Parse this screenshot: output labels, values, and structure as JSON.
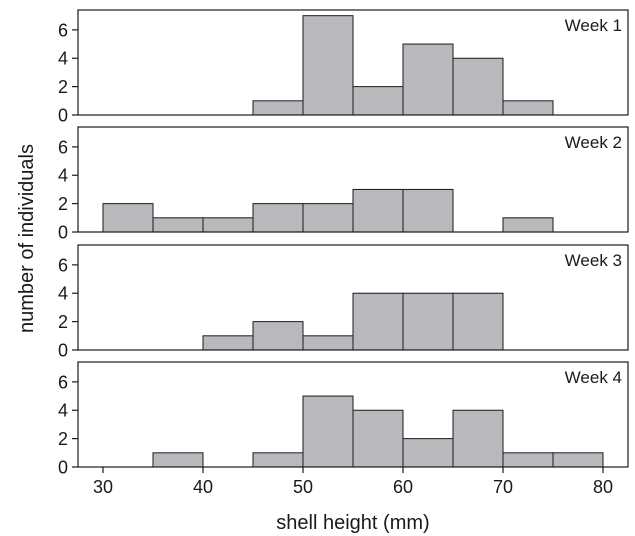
{
  "chart_data": {
    "type": "bar",
    "subtype": "histogram-small-multiples",
    "xlabel": "shell height (mm)",
    "ylabel": "number of individuals",
    "x_ticks": [
      "30",
      "40",
      "50",
      "60",
      "70",
      "80"
    ],
    "x_tick_values": [
      30,
      40,
      50,
      60,
      70,
      80
    ],
    "xlim": [
      27.5,
      82.5
    ],
    "y_ticks": [
      "0",
      "2",
      "4",
      "6"
    ],
    "y_tick_values": [
      0,
      2,
      4,
      6
    ],
    "ylim": [
      0,
      7.4
    ],
    "bin_width": 5,
    "bar_color": "#b9b9bd",
    "grid": false,
    "panels": [
      {
        "title": "Week 1",
        "bins": [
          {
            "start": 45,
            "value": 1
          },
          {
            "start": 50,
            "value": 7
          },
          {
            "start": 55,
            "value": 2
          },
          {
            "start": 60,
            "value": 5
          },
          {
            "start": 65,
            "value": 4
          },
          {
            "start": 70,
            "value": 1
          }
        ]
      },
      {
        "title": "Week 2",
        "bins": [
          {
            "start": 30,
            "value": 2
          },
          {
            "start": 35,
            "value": 1
          },
          {
            "start": 40,
            "value": 1
          },
          {
            "start": 45,
            "value": 2
          },
          {
            "start": 50,
            "value": 2
          },
          {
            "start": 55,
            "value": 3
          },
          {
            "start": 60,
            "value": 3
          },
          {
            "start": 70,
            "value": 1
          }
        ]
      },
      {
        "title": "Week 3",
        "bins": [
          {
            "start": 40,
            "value": 1
          },
          {
            "start": 45,
            "value": 2
          },
          {
            "start": 50,
            "value": 1
          },
          {
            "start": 55,
            "value": 4
          },
          {
            "start": 60,
            "value": 4
          },
          {
            "start": 65,
            "value": 4
          }
        ]
      },
      {
        "title": "Week 4",
        "bins": [
          {
            "start": 35,
            "value": 1
          },
          {
            "start": 45,
            "value": 1
          },
          {
            "start": 50,
            "value": 5
          },
          {
            "start": 55,
            "value": 4
          },
          {
            "start": 60,
            "value": 2
          },
          {
            "start": 65,
            "value": 4
          },
          {
            "start": 70,
            "value": 1
          },
          {
            "start": 75,
            "value": 1
          }
        ]
      }
    ]
  }
}
